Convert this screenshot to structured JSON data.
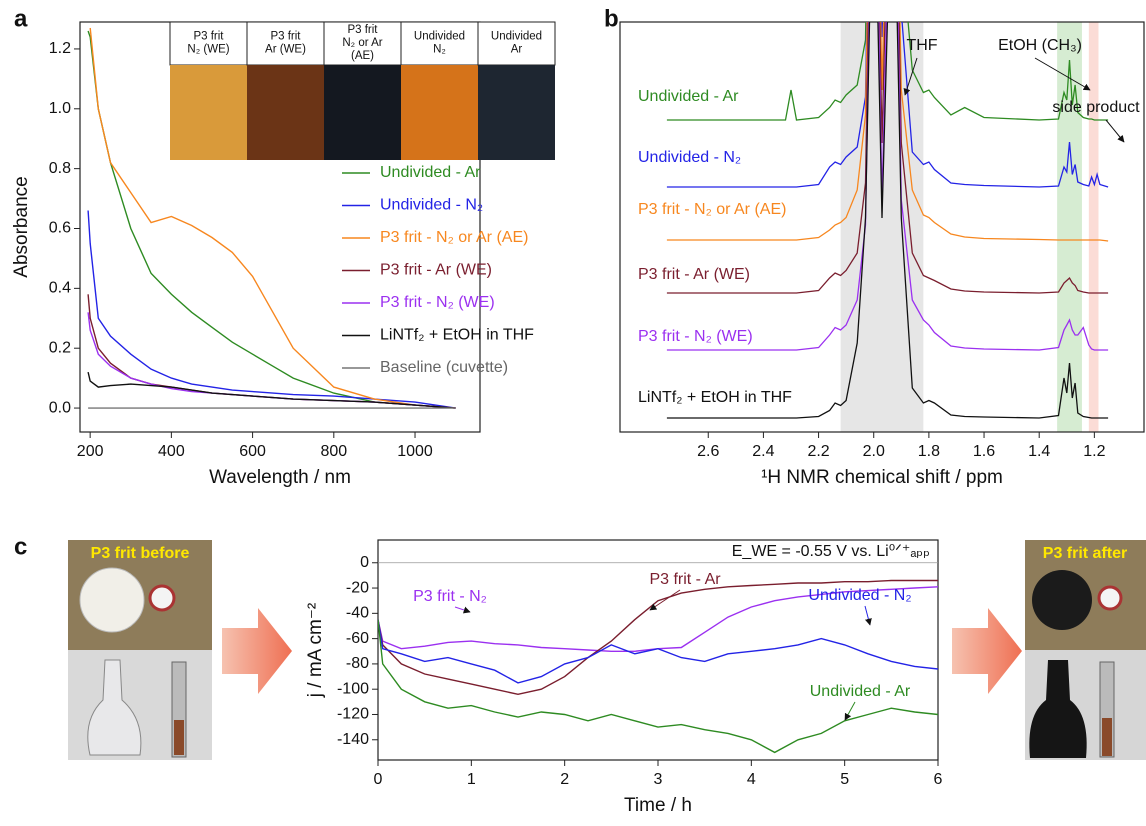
{
  "chart_data": [
    {
      "type": "line",
      "panel": "a",
      "xlabel": "Wavelength / nm",
      "ylabel": "Absorbance",
      "xlim": [
        175,
        1160
      ],
      "ylim": [
        -0.08,
        1.29
      ],
      "xticks": [
        200,
        400,
        600,
        800,
        1000
      ],
      "yticks": [
        {
          "value": 0,
          "label": "0.0"
        },
        0.2,
        0.4,
        0.6,
        0.8,
        {
          "value": 1,
          "label": "1.0"
        },
        1.2
      ],
      "legend": "right",
      "inset_labels": [
        [
          "P3 frit",
          "N₂ (WE)"
        ],
        [
          "P3 frit",
          "Ar (WE)"
        ],
        [
          "P3 frit",
          "N₂ or Ar",
          "(AE)"
        ],
        [
          "Undivided",
          "N₂"
        ],
        [
          "Undivided",
          "Ar"
        ]
      ],
      "x": [
        195,
        200,
        220,
        250,
        300,
        350,
        400,
        450,
        500,
        550,
        600,
        650,
        700,
        800,
        900,
        1000,
        1100
      ],
      "series": [
        {
          "name": "Undivided - Ar",
          "color": "#2e8b22",
          "values": [
            1.26,
            1.24,
            1.0,
            0.82,
            0.6,
            0.45,
            0.38,
            0.32,
            0.27,
            0.22,
            0.18,
            0.14,
            0.1,
            0.05,
            0.02,
            0.01,
            0.0
          ]
        },
        {
          "name": "Undivided - N₂",
          "color": "#2323e6",
          "values": [
            0.66,
            0.55,
            0.3,
            0.24,
            0.18,
            0.13,
            0.1,
            0.08,
            0.07,
            0.06,
            0.055,
            0.05,
            0.045,
            0.04,
            0.03,
            0.02,
            0.0
          ]
        },
        {
          "name": "P3 frit - N₂ or Ar (AE)",
          "color": "#f7871f",
          "values": [
            null,
            1.27,
            1.0,
            0.82,
            0.72,
            0.62,
            0.64,
            0.61,
            0.57,
            0.52,
            0.44,
            0.32,
            0.2,
            0.07,
            0.03,
            0.01,
            0.0
          ]
        },
        {
          "name": "P3 frit - Ar (WE)",
          "color": "#7a1e2e",
          "values": [
            0.38,
            0.3,
            0.2,
            0.15,
            0.1,
            0.08,
            0.07,
            0.06,
            0.05,
            0.045,
            0.04,
            0.035,
            0.03,
            0.025,
            0.02,
            0.01,
            0.0
          ]
        },
        {
          "name": "P3 frit - N₂ (WE)",
          "color": "#9b30f0",
          "values": [
            0.32,
            0.26,
            0.18,
            0.14,
            0.1,
            0.08,
            0.065,
            0.055,
            0.05,
            0.045,
            0.04,
            0.035,
            0.03,
            0.025,
            0.02,
            0.01,
            0.0
          ]
        },
        {
          "name": "LiNTf₂ + EtOH in THF",
          "color": "#111111",
          "values": [
            0.12,
            0.09,
            0.07,
            0.075,
            0.08,
            0.075,
            0.07,
            0.06,
            0.05,
            0.045,
            0.04,
            0.035,
            0.03,
            0.025,
            0.02,
            0.01,
            0.0
          ]
        },
        {
          "name": "Baseline (cuvette)",
          "color": "#777777",
          "values": [
            0,
            0,
            0,
            0,
            0,
            0,
            0,
            0,
            0,
            0,
            0,
            0,
            0,
            0,
            0,
            0,
            0
          ]
        }
      ]
    },
    {
      "type": "spectra",
      "panel": "b",
      "xlabel": "¹H NMR chemical shift / ppm",
      "xlim": [
        2.92,
        1.02
      ],
      "xticks": [
        2.6,
        2.4,
        2.2,
        {
          "value": 2,
          "label": "2.0"
        },
        1.8,
        1.6,
        1.4,
        1.2
      ],
      "annotations": [
        "THF",
        "EtOH (CH₃)",
        "side product"
      ],
      "shaded_regions": [
        {
          "xlim": [
            2.12,
            1.82
          ],
          "color": "#e6e6e6"
        },
        {
          "xlim": [
            1.335,
            1.245
          ],
          "color": "#d6ecd2"
        },
        {
          "xlim": [
            1.22,
            1.185
          ],
          "color": "#fbdcd6"
        }
      ],
      "x": [
        2.75,
        2.5,
        2.32,
        2.3,
        2.28,
        2.2,
        2.16,
        2.14,
        2.12,
        2.1,
        2.06,
        2.03,
        2.0,
        1.97,
        1.93,
        1.9,
        1.86,
        1.82,
        1.8,
        1.78,
        1.72,
        1.67,
        1.6,
        1.4,
        1.33,
        1.31,
        1.3,
        1.29,
        1.28,
        1.27,
        1.26,
        1.24,
        1.22,
        1.21,
        1.2,
        1.19,
        1.18,
        1.15
      ],
      "series": [
        {
          "name": "Undivided - Ar",
          "color": "#2e8b22",
          "values": [
            0,
            0,
            0,
            0.6,
            0,
            0.05,
            0.25,
            0.4,
            0.35,
            0.5,
            0.7,
            1.6,
            12,
            3,
            12,
            3.5,
            1.0,
            0.55,
            0.6,
            0.45,
            0.1,
            0.25,
            0.05,
            0,
            0.02,
            0.55,
            0.4,
            1.2,
            0.3,
            0.7,
            0.15,
            0.05,
            0.02,
            0.02,
            0,
            0,
            0,
            0
          ]
        },
        {
          "name": "Undivided - N₂",
          "color": "#2323e6",
          "values": [
            0,
            0,
            0,
            0,
            0,
            0.05,
            0.4,
            0.5,
            0.45,
            0.6,
            0.8,
            1.8,
            12,
            3,
            12,
            3.5,
            0.7,
            0.45,
            0.5,
            0.35,
            0.08,
            0.05,
            0.03,
            0,
            0.02,
            0.4,
            0.3,
            0.9,
            0.25,
            0.45,
            0.1,
            0.05,
            0.02,
            0.2,
            0.05,
            0.25,
            0.05,
            0
          ]
        },
        {
          "name": "P3 frit - N₂ or Ar (AE)",
          "color": "#f7871f",
          "values": [
            0,
            0,
            0,
            0,
            0,
            0.05,
            0.2,
            0.3,
            0.35,
            0.45,
            1.0,
            2.5,
            12,
            3,
            12,
            3,
            1.0,
            0.5,
            0.45,
            0.35,
            0.12,
            0.06,
            0.03,
            0.01,
            0,
            0,
            0,
            0,
            0,
            0,
            0,
            0,
            0,
            0,
            0,
            0,
            0,
            -0.02
          ]
        },
        {
          "name": "P3 frit - Ar (WE)",
          "color": "#7a1e2e",
          "values": [
            0,
            0,
            0,
            0,
            0,
            0.05,
            0.3,
            0.4,
            0.35,
            0.45,
            0.8,
            2.2,
            12,
            3,
            12,
            3,
            0.8,
            0.35,
            0.3,
            0.25,
            0.08,
            0.04,
            0.02,
            0,
            0.02,
            0.2,
            0.25,
            0.3,
            0.2,
            0.15,
            0.05,
            0.02,
            0,
            0,
            0,
            0,
            0,
            0
          ]
        },
        {
          "name": "P3 frit - N₂ (WE)",
          "color": "#9b30f0",
          "values": [
            0,
            0,
            0,
            0,
            0,
            0.05,
            0.3,
            0.45,
            0.4,
            0.5,
            1.0,
            2.5,
            12,
            3,
            12,
            3,
            1.0,
            0.6,
            0.5,
            0.35,
            0.08,
            0.04,
            0.02,
            0,
            0.05,
            0.4,
            0.5,
            0.6,
            0.4,
            0.3,
            0.3,
            0.45,
            0.1,
            0.02,
            0,
            0,
            0,
            0
          ]
        },
        {
          "name": "LiNTf₂ + EtOH in THF",
          "color": "#111111",
          "values": [
            0,
            0,
            0,
            0,
            0,
            0.03,
            0.15,
            0.3,
            0.25,
            0.35,
            1.5,
            4,
            12,
            4,
            12,
            4,
            0.6,
            0.3,
            0.35,
            0.3,
            0.06,
            0.03,
            0.02,
            0,
            0.05,
            0.8,
            0.5,
            1.1,
            0.4,
            0.7,
            0.1,
            0.03,
            0.01,
            0,
            0,
            0,
            0,
            0
          ]
        }
      ]
    },
    {
      "type": "line",
      "panel": "c",
      "xlabel": "Time / h",
      "ylabel": "j / mA cm⁻²",
      "xlim": [
        0,
        6
      ],
      "ylim": [
        -156,
        18
      ],
      "xticks": [
        0,
        1,
        2,
        3,
        4,
        5,
        6
      ],
      "yticks": [
        0,
        -20,
        -40,
        -60,
        -80,
        -100,
        -120,
        -140
      ],
      "zero_line": true,
      "annotation": "E_WE = -0.55 V vs. Li⁰ᐟ⁺ₐₚₚ",
      "photo_labels": [
        "P3 frit before",
        "P3 frit after"
      ],
      "x": [
        0,
        0.05,
        0.25,
        0.5,
        0.75,
        1,
        1.25,
        1.5,
        1.75,
        2,
        2.25,
        2.5,
        2.75,
        3,
        3.25,
        3.5,
        3.75,
        4,
        4.25,
        4.5,
        4.75,
        5,
        5.25,
        5.5,
        5.75,
        6
      ],
      "series": [
        {
          "name": "P3 frit - N₂",
          "color": "#9b30f0",
          "values": [
            -45,
            -62,
            -68,
            -66,
            -63,
            -62,
            -64,
            -65,
            -67,
            -68,
            -69,
            -70,
            -70,
            -68,
            -67,
            -55,
            -43,
            -35,
            -30,
            -27,
            -25,
            -23,
            -22,
            -21,
            -20,
            -19
          ]
        },
        {
          "name": "P3 frit - Ar",
          "color": "#7a1e2e",
          "values": [
            -45,
            -65,
            -80,
            -88,
            -92,
            -96,
            -100,
            -104,
            -100,
            -90,
            -75,
            -62,
            -45,
            -30,
            -24,
            -21,
            -19,
            -18,
            -17,
            -16,
            -16,
            -15,
            -15,
            -14,
            -14,
            -14
          ]
        },
        {
          "name": "Undivided - N₂",
          "color": "#2323e6",
          "values": [
            -45,
            -68,
            -72,
            -78,
            -75,
            -80,
            -85,
            -95,
            -90,
            -80,
            -75,
            -65,
            -72,
            -68,
            -75,
            -78,
            -72,
            -70,
            -68,
            -65,
            -60,
            -65,
            -72,
            -78,
            -82,
            -84
          ]
        },
        {
          "name": "Undivided - Ar",
          "color": "#2e8b22",
          "values": [
            -45,
            -80,
            -100,
            -110,
            -115,
            -113,
            -118,
            -122,
            -118,
            -120,
            -125,
            -120,
            -125,
            -130,
            -128,
            -132,
            -135,
            -140,
            -150,
            -140,
            -135,
            -125,
            -120,
            -115,
            -118,
            -120
          ]
        }
      ]
    }
  ]
}
